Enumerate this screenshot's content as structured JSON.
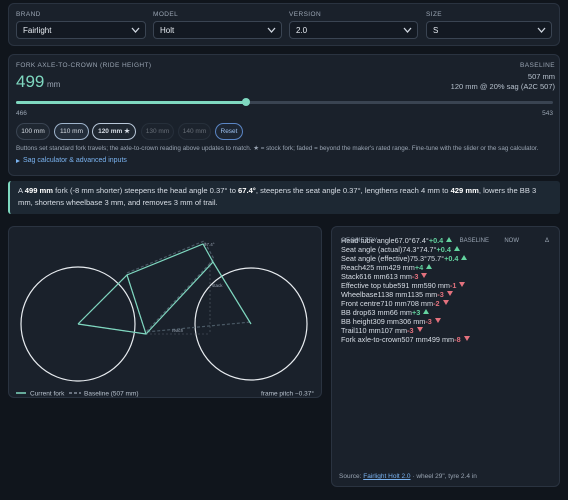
{
  "selectors": [
    {
      "label": "BRAND",
      "value": "Fairlight"
    },
    {
      "label": "MODEL",
      "value": "Holt"
    },
    {
      "label": "VERSION",
      "value": "2.0"
    },
    {
      "label": "SIZE",
      "value": "S"
    }
  ],
  "fork": {
    "title": "FORK AXLE-TO-CROWN (RIDE HEIGHT)",
    "value": 499,
    "unit": "mm",
    "baseline_label": "BASELINE",
    "baseline_value": "507 mm",
    "baseline_note": "120 mm @ 20% sag (A2C 507)",
    "slider_min": 466,
    "slider_max": 543,
    "buttons": [
      "100 mm",
      "110 mm",
      "120 mm ★",
      "130 mm",
      "140 mm",
      "Reset"
    ],
    "note": "Buttons set standard fork travels; the axle-to-crown reading above updates to match. ★ = stock fork; faded = beyond the maker's rated range. Fine-tune with the slider or the sag calculator.",
    "advanced_link": "Sag calculator & advanced inputs"
  },
  "summary": [
    {
      "text": "A ",
      "bold": false
    },
    {
      "text": "499 mm",
      "bold": true
    },
    {
      "text": " fork (-8 mm shorter) steepens the head angle 0.37° to ",
      "bold": false
    },
    {
      "text": "67.4°",
      "bold": true
    },
    {
      "text": ", steepens the seat angle 0.37°, lengthens reach 4 mm to ",
      "bold": false
    },
    {
      "text": "429 mm",
      "bold": true
    },
    {
      "text": ", lowers the BB 3 mm, shortens wheelbase 3 mm, and removes 3 mm of trail.",
      "bold": false
    }
  ],
  "diagram": {
    "annotations": [
      "67.4°",
      "stack",
      "reach"
    ],
    "legend": [
      "Current fork",
      "Baseline (507 mm)"
    ],
    "pitch": "frame pitch −0.37°"
  },
  "table": {
    "columns": [
      "GEOMETRY",
      "BASELINE",
      "NOW",
      "Δ"
    ],
    "rows": [
      [
        "Head tube angle",
        "67.0°",
        "67.4°",
        "+0.4"
      ],
      [
        "Seat angle (actual)",
        "74.3°",
        "74.7°",
        "+0.4"
      ],
      [
        "Seat angle (effective)",
        "75.3°",
        "75.7°",
        "+0.4"
      ],
      [
        "Reach",
        "425 mm",
        "429 mm",
        "+4"
      ],
      [
        "Stack",
        "616 mm",
        "613 mm",
        "-3"
      ],
      [
        "Effective top tube",
        "591 mm",
        "590 mm",
        "-1"
      ],
      [
        "Wheelbase",
        "1138 mm",
        "1135 mm",
        "-3"
      ],
      [
        "Front centre",
        "710 mm",
        "708 mm",
        "-2"
      ],
      [
        "BB drop",
        "63 mm",
        "66 mm",
        "+3"
      ],
      [
        "BB height",
        "309 mm",
        "306 mm",
        "-3"
      ],
      [
        "Trail",
        "110 mm",
        "107 mm",
        "-3"
      ],
      [
        "Fork axle-to-crown",
        "507 mm",
        "499 mm",
        "-8"
      ]
    ],
    "source": [
      {
        "text": "Source: ",
        "link": false
      },
      {
        "text": "Fairlight Holt 2.0",
        "link": true
      },
      {
        "text": " · wheel 29\", tyre 2.4 in",
        "link": false
      }
    ]
  }
}
